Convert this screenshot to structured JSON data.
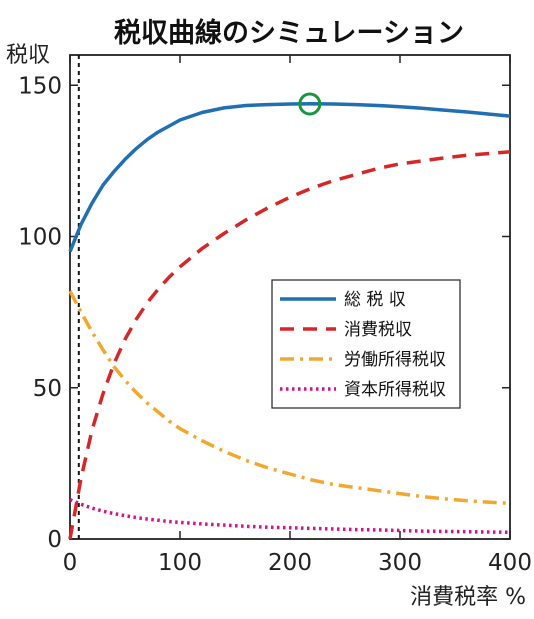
{
  "chart_data": {
    "type": "line",
    "title": "税収曲線のシミュレーション",
    "xlabel": "消費税率 %",
    "ylabel": "税収",
    "xlim": [
      0,
      400
    ],
    "ylim": [
      0,
      160
    ],
    "xticks": [
      "0",
      "100",
      "200",
      "300",
      "400"
    ],
    "yticks": [
      "0",
      "50",
      "100",
      "150"
    ],
    "grid": false,
    "legend_position": "center-right",
    "reference_line_x": 8,
    "series": [
      {
        "name": "総 税 収",
        "color": "#1f6fb2",
        "style": "solid",
        "x": [
          0,
          10,
          20,
          30,
          40,
          50,
          60,
          70,
          80,
          90,
          100,
          120,
          140,
          160,
          180,
          200,
          220,
          240,
          260,
          280,
          300,
          320,
          340,
          360,
          380,
          400
        ],
        "y": [
          95,
          104,
          111,
          117,
          121.5,
          125.5,
          129,
          132,
          134.5,
          136.5,
          138.5,
          141,
          142.5,
          143.3,
          143.6,
          143.8,
          143.9,
          143.8,
          143.6,
          143.3,
          142.9,
          142.4,
          141.8,
          141.2,
          140.5,
          139.8
        ]
      },
      {
        "name": "消費税収",
        "color": "#d62728",
        "style": "dashed",
        "x": [
          0,
          10,
          20,
          30,
          40,
          50,
          60,
          70,
          80,
          90,
          100,
          120,
          140,
          160,
          180,
          200,
          220,
          240,
          260,
          280,
          300,
          320,
          340,
          360,
          380,
          400
        ],
        "y": [
          0,
          20,
          36,
          48,
          58,
          66,
          72.5,
          78,
          82.5,
          86.5,
          90,
          96,
          101,
          105.5,
          109.5,
          113,
          116,
          118.5,
          120.5,
          122.5,
          124,
          125,
          126,
          126.8,
          127.4,
          128
        ]
      },
      {
        "name": "労働所得税収",
        "color": "#f0a830",
        "style": "dashdot",
        "x": [
          0,
          10,
          20,
          30,
          40,
          50,
          60,
          70,
          80,
          90,
          100,
          120,
          140,
          160,
          180,
          200,
          220,
          240,
          260,
          280,
          300,
          320,
          340,
          360,
          380,
          400
        ],
        "y": [
          82,
          75,
          68.5,
          62.5,
          57,
          52.5,
          48.5,
          45,
          42,
          39,
          36.5,
          32.5,
          29,
          26,
          23.5,
          21.5,
          19.5,
          18,
          17,
          16,
          15,
          14,
          13.3,
          12.7,
          12.2,
          11.8
        ]
      },
      {
        "name": "資本所得税収",
        "color": "#d4108a",
        "style": "dotted",
        "x": [
          0,
          10,
          20,
          30,
          40,
          50,
          60,
          70,
          80,
          90,
          100,
          120,
          140,
          160,
          180,
          200,
          220,
          240,
          260,
          280,
          300,
          320,
          340,
          360,
          380,
          400
        ],
        "y": [
          13,
          11.5,
          10.2,
          9.2,
          8.4,
          7.7,
          7.1,
          6.6,
          6.2,
          5.8,
          5.5,
          5,
          4.6,
          4.2,
          3.9,
          3.7,
          3.5,
          3.3,
          3.1,
          3,
          2.8,
          2.6,
          2.5,
          2.4,
          2.3,
          2.2
        ]
      }
    ],
    "marker": {
      "x": 218,
      "y": 143.8,
      "shape": "circle-open",
      "color": "#1a9641"
    }
  }
}
